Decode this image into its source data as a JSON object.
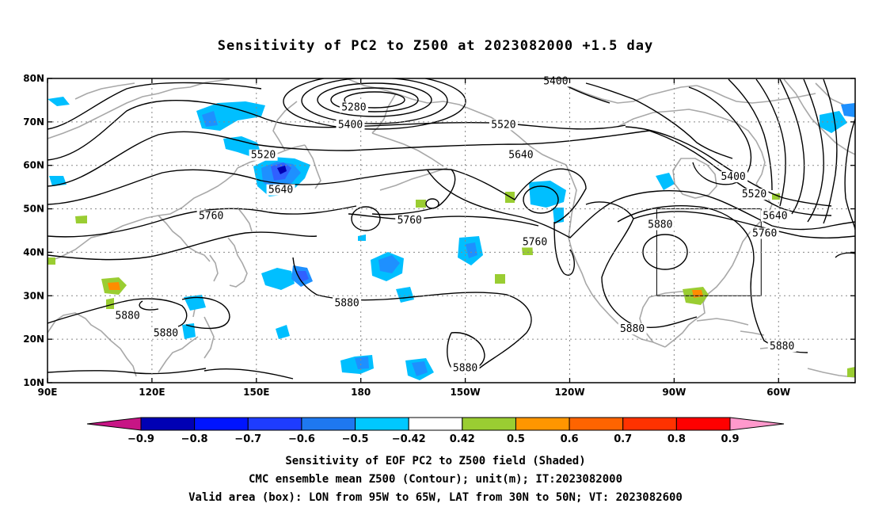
{
  "title": "Sensitivity of PC2 to Z500 at 2023082000 +1.5 day",
  "map": {
    "lon_ticks": [
      {
        "lon": 90,
        "label": "90E"
      },
      {
        "lon": 120,
        "label": "120E"
      },
      {
        "lon": 150,
        "label": "150E"
      },
      {
        "lon": 180,
        "label": "180"
      },
      {
        "lon": 210,
        "label": "150W"
      },
      {
        "lon": 240,
        "label": "120W"
      },
      {
        "lon": 270,
        "label": "90W"
      },
      {
        "lon": 300,
        "label": "60W"
      }
    ],
    "lat_ticks": [
      {
        "lat": 80,
        "label": "80N"
      },
      {
        "lat": 70,
        "label": "70N"
      },
      {
        "lat": 60,
        "label": "60N"
      },
      {
        "lat": 50,
        "label": "50N"
      },
      {
        "lat": 40,
        "label": "40N"
      },
      {
        "lat": 30,
        "label": "30N"
      },
      {
        "lat": 20,
        "label": "20N"
      },
      {
        "lat": 10,
        "label": "10N"
      }
    ],
    "extent": {
      "lon_min": 90,
      "lon_max": 322,
      "lat_min": 10,
      "lat_max": 80
    },
    "valid_box": {
      "lon_min": 265,
      "lon_max": 295,
      "lat_min": 30,
      "lat_max": 50
    },
    "contour_labels": [
      {
        "text": "5400",
        "lon": 236,
        "lat": 79
      },
      {
        "text": "5280",
        "lon": 178,
        "lat": 73
      },
      {
        "text": "5400",
        "lon": 177,
        "lat": 69
      },
      {
        "text": "5520",
        "lon": 221,
        "lat": 69
      },
      {
        "text": "5520",
        "lon": 152,
        "lat": 62
      },
      {
        "text": "5640",
        "lon": 226,
        "lat": 62
      },
      {
        "text": "5640",
        "lon": 157,
        "lat": 54
      },
      {
        "text": "5400",
        "lon": 287,
        "lat": 57
      },
      {
        "text": "5520",
        "lon": 293,
        "lat": 53
      },
      {
        "text": "5640",
        "lon": 299,
        "lat": 48
      },
      {
        "text": "5760",
        "lon": 296,
        "lat": 44
      },
      {
        "text": "5880",
        "lon": 266,
        "lat": 46
      },
      {
        "text": "5760",
        "lon": 137,
        "lat": 48
      },
      {
        "text": "5760",
        "lon": 194,
        "lat": 47
      },
      {
        "text": "5760",
        "lon": 230,
        "lat": 42
      },
      {
        "text": "5880",
        "lon": 176,
        "lat": 28
      },
      {
        "text": "5880",
        "lon": 113,
        "lat": 25
      },
      {
        "text": "5880",
        "lon": 124,
        "lat": 21
      },
      {
        "text": "5880",
        "lon": 210,
        "lat": 13
      },
      {
        "text": "5880",
        "lon": 258,
        "lat": 22
      },
      {
        "text": "5880",
        "lon": 301,
        "lat": 18
      }
    ],
    "shaded_colors": {
      "neg_strong": "#3060ff",
      "neg_mid": "#1e90ff",
      "neg_weak": "#00bfff",
      "pos_weak": "#9acd32",
      "pos_mid": "#ff8c00"
    }
  },
  "colorbar": {
    "colors": [
      "#c71585",
      "#0000b4",
      "#0014ff",
      "#1e3cff",
      "#1e78f0",
      "#00c8ff",
      "#ffffff",
      "#9acd32",
      "#ff9600",
      "#ff6400",
      "#ff3200",
      "#ff0000",
      "#ff99cc"
    ],
    "labels": [
      "−0.9",
      "−0.8",
      "−0.7",
      "−0.6",
      "−0.5",
      "−0.42",
      "0.42",
      "0.5",
      "0.6",
      "0.7",
      "0.8",
      "0.9"
    ]
  },
  "captions": {
    "line1": "Sensitivity of EOF PC2 to Z500 field (Shaded)",
    "line2": "CMC ensemble mean Z500 (Contour); unit(m); IT:2023082000",
    "line3": "Valid area (box): LON from 95W to 65W, LAT from 30N to 50N; VT: 2023082600"
  }
}
